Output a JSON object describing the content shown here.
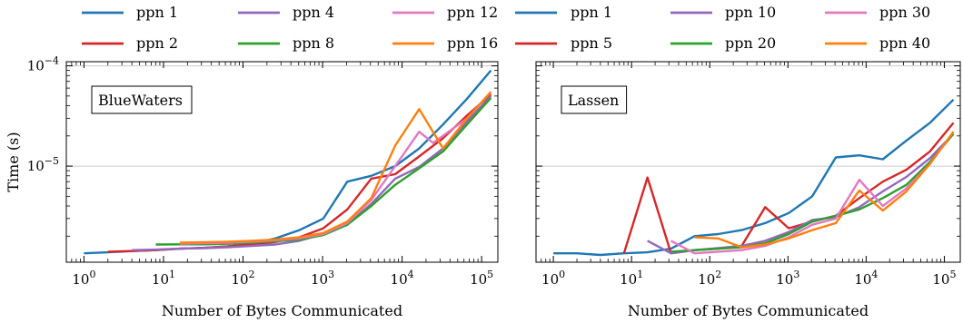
{
  "chart_data": [
    {
      "type": "line",
      "title": "BlueWaters",
      "xlabel": "Number of Bytes Communicated",
      "ylabel": "Time (s)",
      "xscale": "log",
      "yscale": "log",
      "xlim": [
        0.6,
        160000
      ],
      "ylim": [
        1.1e-06,
        0.00011
      ],
      "xticks": [
        {
          "value": 1,
          "base": "10",
          "exp": "0"
        },
        {
          "value": 10,
          "base": "10",
          "exp": "1"
        },
        {
          "value": 100,
          "base": "10",
          "exp": "2"
        },
        {
          "value": 1000,
          "base": "10",
          "exp": "3"
        },
        {
          "value": 10000,
          "base": "10",
          "exp": "4"
        },
        {
          "value": 100000,
          "base": "10",
          "exp": "5"
        }
      ],
      "yticks": [
        {
          "value": 1e-05,
          "base": "10",
          "exp": "−5"
        },
        {
          "value": 0.0001,
          "base": "10",
          "exp": "−4"
        }
      ],
      "grid": "horizontal-major",
      "legend": "top",
      "series": [
        {
          "name": "ppn 1",
          "color": "#1f77b4",
          "x": [
            1,
            2,
            4,
            8,
            16,
            32,
            64,
            128,
            256,
            512,
            1024,
            2048,
            4096,
            8192,
            16384,
            32768,
            65536,
            131072
          ],
          "y": [
            1.35e-06,
            1.38e-06,
            1.42e-06,
            1.45e-06,
            1.5e-06,
            1.53e-06,
            1.58e-06,
            1.68e-06,
            1.9e-06,
            2.3e-06,
            3e-06,
            7e-06,
            8e-06,
            1e-05,
            1.5e-05,
            2.6e-05,
            4.7e-05,
            9e-05
          ]
        },
        {
          "name": "ppn 2",
          "color": "#d62728",
          "x": [
            2,
            4,
            8,
            16,
            32,
            64,
            128,
            256,
            512,
            1024,
            2048,
            4096,
            8192,
            16384,
            32768,
            65536,
            131072
          ],
          "y": [
            1.4e-06,
            1.42e-06,
            1.45e-06,
            1.5e-06,
            1.53e-06,
            1.58e-06,
            1.65e-06,
            1.75e-06,
            1.95e-06,
            2.4e-06,
            3.7e-06,
            7.5e-06,
            8.3e-06,
            1.25e-05,
            1.9e-05,
            3.2e-05,
            5.2e-05
          ]
        },
        {
          "name": "ppn 4",
          "color": "#9467bd",
          "x": [
            4,
            8,
            16,
            32,
            64,
            128,
            256,
            512,
            1024,
            2048,
            4096,
            8192,
            16384,
            32768,
            65536,
            131072
          ],
          "y": [
            1.45e-06,
            1.47e-06,
            1.5e-06,
            1.52e-06,
            1.55e-06,
            1.6e-06,
            1.65e-06,
            1.8e-06,
            2.1e-06,
            2.6e-06,
            4.2e-06,
            7.5e-06,
            9.8e-06,
            1.5e-05,
            2.8e-05,
            5e-05
          ]
        },
        {
          "name": "ppn 8",
          "color": "#2ca02c",
          "x": [
            8,
            16,
            32,
            64,
            128,
            256,
            512,
            1024,
            2048,
            4096,
            8192,
            16384,
            32768,
            65536,
            131072
          ],
          "y": [
            1.65e-06,
            1.66e-06,
            1.66e-06,
            1.68e-06,
            1.72e-06,
            1.78e-06,
            1.85e-06,
            2.05e-06,
            2.6e-06,
            4e-06,
            6.5e-06,
            9.5e-06,
            1.4e-05,
            2.6e-05,
            4.8e-05
          ]
        },
        {
          "name": "ppn 12",
          "color": "#e377c2",
          "x": [
            16,
            32,
            64,
            128,
            256,
            512,
            1024,
            2048,
            4096,
            8192,
            16384,
            24576,
            65536,
            131072
          ],
          "y": [
            1.68e-06,
            1.7e-06,
            1.72e-06,
            1.76e-06,
            1.82e-06,
            1.9e-06,
            2.1e-06,
            2.7e-06,
            4.6e-06,
            1e-05,
            2.2e-05,
            1.7e-05,
            3e-05,
            5.5e-05
          ]
        },
        {
          "name": "ppn 16",
          "color": "#ff7f0e",
          "x": [
            16,
            32,
            64,
            128,
            256,
            512,
            1024,
            2048,
            4096,
            8192,
            16384,
            32768,
            65536,
            131072
          ],
          "y": [
            1.72e-06,
            1.74e-06,
            1.76e-06,
            1.8e-06,
            1.85e-06,
            1.95e-06,
            2.15e-06,
            2.8e-06,
            4.8e-06,
            1.6e-05,
            3.7e-05,
            1.5e-05,
            3e-05,
            5.5e-05
          ]
        }
      ]
    },
    {
      "type": "line",
      "title": "Lassen",
      "xlabel": "Number of Bytes Communicated",
      "ylabel": "",
      "xscale": "log",
      "yscale": "log",
      "xlim": [
        0.6,
        160000
      ],
      "ylim": [
        1.1e-06,
        0.00011
      ],
      "xticks": [
        {
          "value": 1,
          "base": "10",
          "exp": "0"
        },
        {
          "value": 10,
          "base": "10",
          "exp": "1"
        },
        {
          "value": 100,
          "base": "10",
          "exp": "2"
        },
        {
          "value": 1000,
          "base": "10",
          "exp": "3"
        },
        {
          "value": 10000,
          "base": "10",
          "exp": "4"
        },
        {
          "value": 100000,
          "base": "10",
          "exp": "5"
        }
      ],
      "yticks": [],
      "grid": "horizontal-major",
      "legend": "top",
      "series": [
        {
          "name": "ppn 1",
          "color": "#1f77b4",
          "x": [
            1,
            2,
            4,
            8,
            16,
            32,
            64,
            128,
            256,
            512,
            1024,
            2048,
            4096,
            8192,
            16384,
            32768,
            65536,
            131072
          ],
          "y": [
            1.35e-06,
            1.35e-06,
            1.3e-06,
            1.35e-06,
            1.38e-06,
            1.5e-06,
            2e-06,
            2.1e-06,
            2.3e-06,
            2.7e-06,
            3.4e-06,
            5e-06,
            1.22e-05,
            1.28e-05,
            1.17e-05,
            1.8e-05,
            2.7e-05,
            4.6e-05
          ]
        },
        {
          "name": "ppn 5",
          "color": "#d62728",
          "x": [
            8,
            16,
            32,
            64,
            128,
            256,
            512,
            1024,
            2048,
            4096,
            8192,
            16384,
            32768,
            65536,
            131072
          ],
          "y": [
            1.35e-06,
            7.7e-06,
            1.35e-06,
            1.45e-06,
            1.5e-06,
            1.6e-06,
            3.9e-06,
            2.4e-06,
            2.8e-06,
            3.2e-06,
            4.8e-06,
            7e-06,
            9.2e-06,
            1.4e-05,
            2.7e-05
          ]
        },
        {
          "name": "ppn 10",
          "color": "#9467bd",
          "x": [
            16,
            32,
            64,
            128,
            256,
            512,
            1024,
            2048,
            4096,
            8192,
            16384,
            32768,
            65536,
            131072
          ],
          "y": [
            1.8e-06,
            1.35e-06,
            1.45e-06,
            1.52e-06,
            1.6e-06,
            1.8e-06,
            2.2e-06,
            2.9e-06,
            3.1e-06,
            3.9e-06,
            5.6e-06,
            7.8e-06,
            1.2e-05,
            2.1e-05
          ]
        },
        {
          "name": "ppn 20",
          "color": "#2ca02c",
          "x": [
            32,
            64,
            128,
            256,
            512,
            1024,
            2048,
            4096,
            8192,
            16384,
            32768,
            65536,
            131072
          ],
          "y": [
            1.4e-06,
            1.45e-06,
            1.5e-06,
            1.55e-06,
            1.7e-06,
            2.1e-06,
            2.8e-06,
            3.2e-06,
            3.7e-06,
            4.8e-06,
            6.5e-06,
            1.1e-05,
            2.1e-05
          ]
        },
        {
          "name": "ppn 30",
          "color": "#e377c2",
          "x": [
            32,
            64,
            128,
            256,
            512,
            1024,
            2048,
            4096,
            8192,
            16384,
            32768,
            65536,
            131072
          ],
          "y": [
            1.8e-06,
            1.35e-06,
            1.4e-06,
            1.45e-06,
            1.6e-06,
            1.95e-06,
            2.6e-06,
            3e-06,
            7.3e-06,
            4e-06,
            6e-06,
            1.05e-05,
            2.2e-05
          ]
        },
        {
          "name": "ppn 40",
          "color": "#ff7f0e",
          "x": [
            64,
            128,
            256,
            512,
            1024,
            2048,
            4096,
            8192,
            16384,
            32768,
            65536,
            131072
          ],
          "y": [
            1.95e-06,
            1.9e-06,
            1.55e-06,
            1.65e-06,
            1.9e-06,
            2.3e-06,
            2.7e-06,
            5.7e-06,
            3.6e-06,
            5.6e-06,
            1.05e-05,
            2.2e-05
          ]
        }
      ]
    }
  ]
}
